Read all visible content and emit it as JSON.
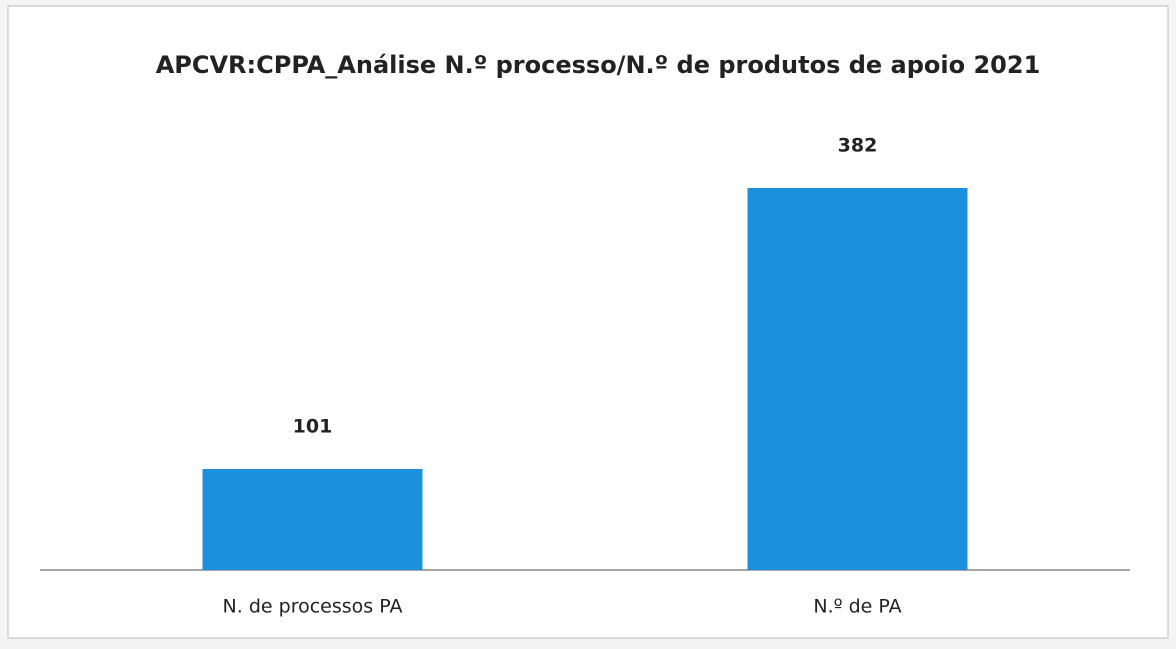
{
  "chart_data": {
    "type": "bar",
    "title": "APCVR:CPPA_Análise N.º processo/N.º de produtos de apoio 2021",
    "categories": [
      "N. de processos PA",
      "N.º de PA"
    ],
    "values": [
      101,
      382
    ],
    "color": "#1c8fdd"
  }
}
